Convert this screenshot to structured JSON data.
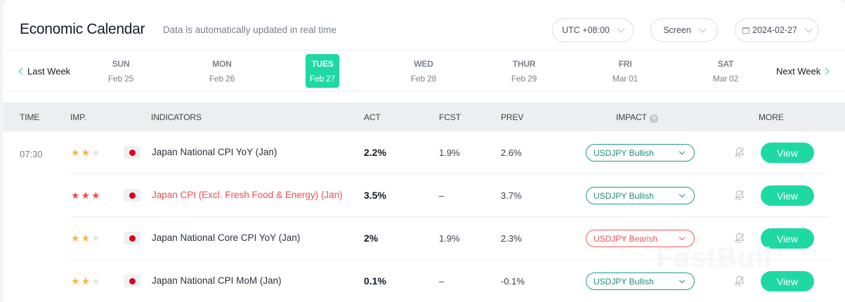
{
  "header": {
    "title": "Economic Calendar",
    "subtitle": "Data is automatically updated in real time",
    "timezone": "UTC +08:00",
    "screen": "Screen",
    "date": "2024-02-27"
  },
  "week_nav": {
    "prev_label": "Last Week",
    "next_label": "Next Week",
    "days": [
      {
        "name": "SUN",
        "date": "Feb 25",
        "active": false
      },
      {
        "name": "MON",
        "date": "Feb 26",
        "active": false
      },
      {
        "name": "TUES",
        "date": "Feb 27",
        "active": true
      },
      {
        "name": "WED",
        "date": "Feb 28",
        "active": false
      },
      {
        "name": "THUR",
        "date": "Feb 29",
        "active": false
      },
      {
        "name": "FRI",
        "date": "Mar 01",
        "active": false
      },
      {
        "name": "SAT",
        "date": "Mar 02",
        "active": false
      }
    ]
  },
  "table": {
    "columns": {
      "time": "TIME",
      "imp": "IMP.",
      "indicators": "INDICATORS",
      "act": "ACT",
      "fcst": "FCST",
      "prev": "PREV",
      "impact": "IMPACT",
      "more": "MORE"
    },
    "help_glyph": "?",
    "rows": [
      {
        "time": "07:30",
        "stars": 2,
        "star_color": "#f5b642",
        "country_flag": "japan-flag",
        "indicator": "Japan National CPI YoY (Jan)",
        "high": false,
        "act": "2.2%",
        "fcst": "1.9%",
        "prev": "2.6%",
        "impact": "USDJPY Bullish",
        "impact_type": "bullish",
        "view_label": "View"
      },
      {
        "time": "",
        "stars": 3,
        "star_color": "#ef4f4f",
        "country_flag": "japan-flag",
        "indicator": "Japan CPI (Excl. Fresh Food & Energy) (Jan)",
        "high": true,
        "act": "3.5%",
        "fcst": "–",
        "prev": "3.7%",
        "impact": "USDJPY Bullish",
        "impact_type": "bullish",
        "view_label": "View"
      },
      {
        "time": "",
        "stars": 2,
        "star_color": "#f5b642",
        "country_flag": "japan-flag",
        "indicator": "Japan National Core CPI YoY (Jan)",
        "high": false,
        "act": "2%",
        "fcst": "1.9%",
        "prev": "2.3%",
        "impact": "USDJPY Bearish",
        "impact_type": "bearish",
        "view_label": "View"
      },
      {
        "time": "",
        "stars": 2,
        "star_color": "#f5b642",
        "country_flag": "japan-flag",
        "indicator": "Japan National CPI MoM (Jan)",
        "high": false,
        "act": "0.1%",
        "fcst": "–",
        "prev": "-0.1%",
        "impact": "USDJPY Bullish",
        "impact_type": "bullish",
        "view_label": "View"
      }
    ]
  },
  "colors": {
    "accent": "#1ed9a4",
    "bullish": "#1f9a8a",
    "bearish": "#ef4f4f",
    "star_inactive": "#e3e5ea"
  },
  "watermark": "FastBull"
}
